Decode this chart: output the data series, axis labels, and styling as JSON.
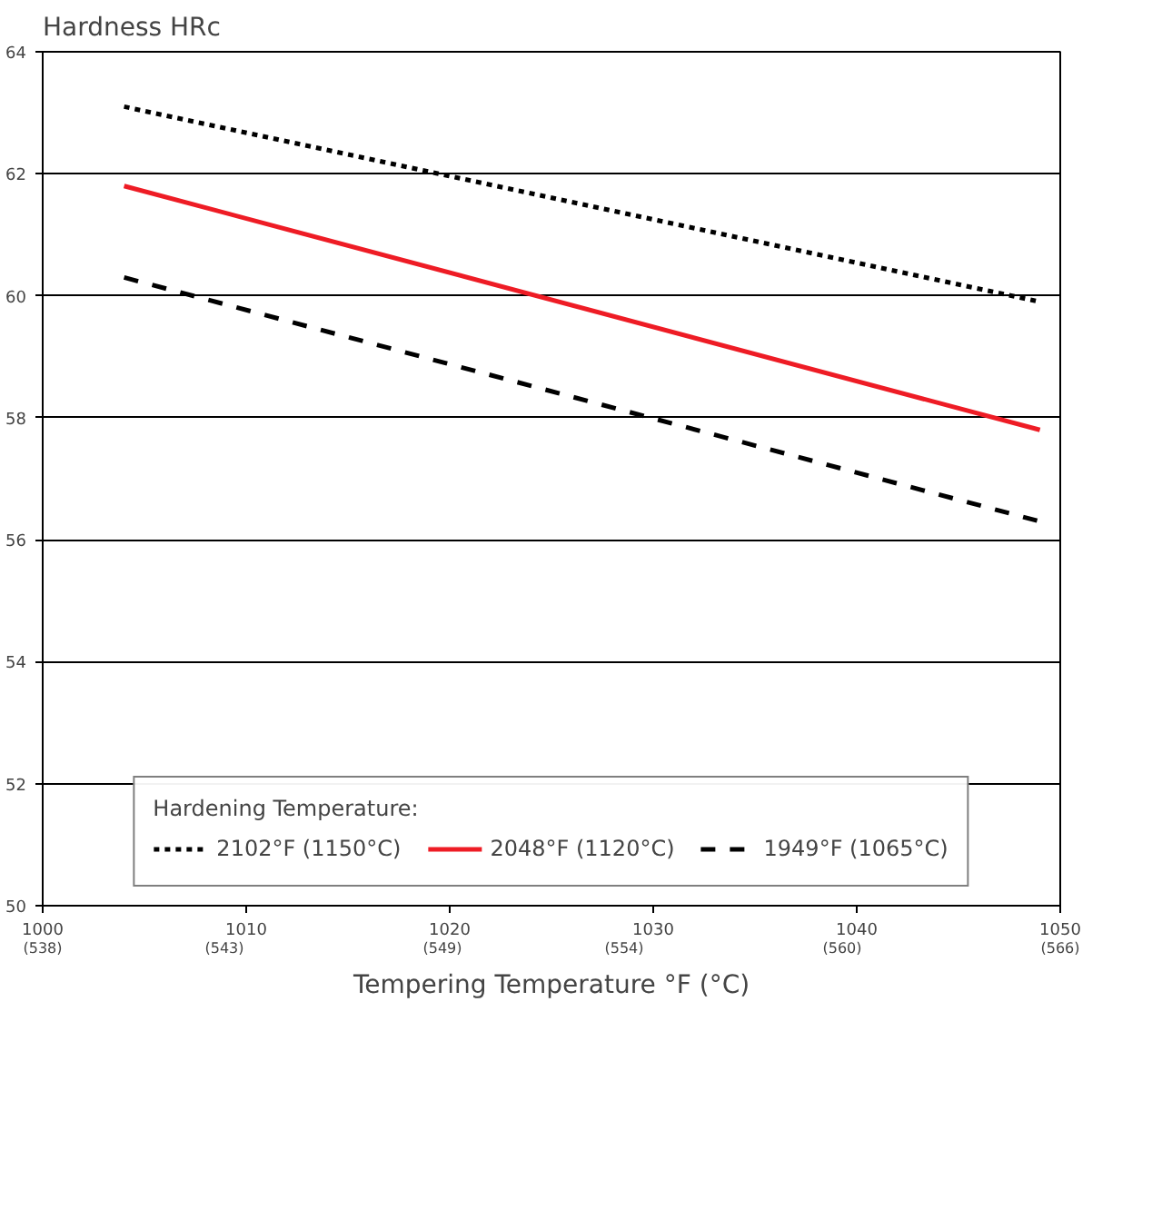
{
  "chart_data": {
    "type": "line",
    "ylabel": "Hardness HRc",
    "xlabel": "Tempering Temperature °F (°C)",
    "legend_title": "Hardening Temperature:",
    "legend": "bottom",
    "grid": "y",
    "xlim": [
      1000,
      1050
    ],
    "ylim": [
      50,
      64
    ],
    "xticks": [
      1000,
      1010,
      1020,
      1030,
      1040,
      1050
    ],
    "x2lim": [
      538,
      566
    ],
    "x2ticks": [
      {
        "value": 538,
        "label": "(538)"
      },
      {
        "value": 543,
        "label": "(543)"
      },
      {
        "value": 549,
        "label": "(549)"
      },
      {
        "value": 554,
        "label": "(554)"
      },
      {
        "value": 560,
        "label": "(560)"
      },
      {
        "value": 566,
        "label": "(566)"
      }
    ],
    "yticks": [
      50,
      52,
      54,
      56,
      58,
      60,
      62,
      64
    ],
    "x": [
      1004,
      1049
    ],
    "series": [
      {
        "name": "2102°F (1150°C)",
        "color": "#000000",
        "line_style": "dotted",
        "values": [
          63.1,
          59.9
        ]
      },
      {
        "name": "2048°F (1120°C)",
        "color": "#ee1c25",
        "line_style": "solid",
        "values": [
          61.8,
          57.8
        ]
      },
      {
        "name": "1949°F (1065°C)",
        "color": "#000000",
        "line_style": "dashed",
        "values": [
          60.3,
          56.3
        ]
      }
    ]
  }
}
